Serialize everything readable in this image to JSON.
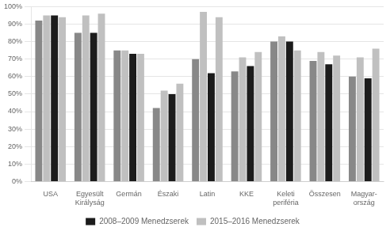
{
  "chart_data": {
    "type": "bar",
    "categories": [
      "USA",
      "Egyesült\nKirályság",
      "Germán",
      "Északi",
      "Latin",
      "KKE",
      "Keleti\nperiféria",
      "Összesen",
      "Magyar-\nország"
    ],
    "series": [
      {
        "color": "#888888",
        "values": [
          92,
          85,
          75,
          42,
          70,
          63,
          80,
          69,
          60
        ]
      },
      {
        "color": "#c0c0c0",
        "values": [
          95,
          95,
          75,
          52,
          97,
          71,
          83,
          74,
          71
        ]
      },
      {
        "name": "2008–2009 Menedzserek",
        "color": "#1c1c1c",
        "values": [
          95,
          85,
          73,
          50,
          62,
          66,
          80,
          67,
          59
        ]
      },
      {
        "name": "2015–2016 Menedzserek",
        "color": "#c0c0c0",
        "values": [
          94,
          96,
          73,
          56,
          94,
          74,
          75,
          72,
          76
        ]
      }
    ],
    "ylim": [
      0,
      100
    ],
    "yticks": [
      {
        "value": 0,
        "label": "0%"
      },
      {
        "value": 10,
        "label": "10%"
      },
      {
        "value": 20,
        "label": "20%"
      },
      {
        "value": 30,
        "label": "30%"
      },
      {
        "value": 40,
        "label": "40%"
      },
      {
        "value": 50,
        "label": "50%"
      },
      {
        "value": 60,
        "label": "60%"
      },
      {
        "value": 70,
        "label": "70%"
      },
      {
        "value": 80,
        "label": "80%"
      },
      {
        "value": 90,
        "label": "90%"
      },
      {
        "value": 100,
        "label": "100%"
      }
    ],
    "grid": true,
    "legend": "bottom"
  }
}
